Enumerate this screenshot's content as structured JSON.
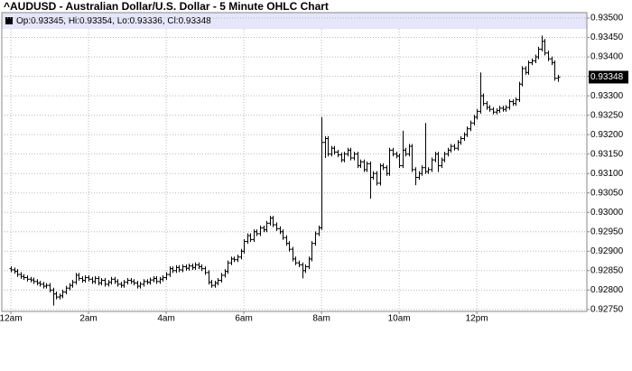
{
  "chart_data": {
    "type": "ohlc",
    "title": "^AUDUSD - Australian Dollar/U.S. Dollar - 5 Minute OHLC Chart",
    "legend_text": "Op:0.93345, Hi:0.93354, Lo:0.93336, Cl:0.93348",
    "last_price": 0.93348,
    "grid": true,
    "color": "#000000",
    "xlim": [
      -14,
      890
    ],
    "xticks": [
      {
        "value": 0,
        "label": "12am"
      },
      {
        "value": 120,
        "label": "2am"
      },
      {
        "value": 240,
        "label": "4am"
      },
      {
        "value": 360,
        "label": "6am"
      },
      {
        "value": 480,
        "label": "8am"
      },
      {
        "value": 600,
        "label": "10am"
      },
      {
        "value": 720,
        "label": "12pm"
      }
    ],
    "ylim": [
      0.92745,
      0.93514
    ],
    "yticks": [
      {
        "value": 0.9275,
        "label": "0.92750"
      },
      {
        "value": 0.928,
        "label": "0.92800"
      },
      {
        "value": 0.9285,
        "label": "0.92850"
      },
      {
        "value": 0.929,
        "label": "0.92900"
      },
      {
        "value": 0.9295,
        "label": "0.92950"
      },
      {
        "value": 0.93,
        "label": "0.93000"
      },
      {
        "value": 0.9305,
        "label": "0.93050"
      },
      {
        "value": 0.931,
        "label": "0.93100"
      },
      {
        "value": 0.9315,
        "label": "0.93150"
      },
      {
        "value": 0.932,
        "label": "0.93200"
      },
      {
        "value": 0.9325,
        "label": "0.93250"
      },
      {
        "value": 0.933,
        "label": "0.93300"
      },
      {
        "value": 0.9335,
        "label": "0.93350"
      },
      {
        "value": 0.934,
        "label": "0.93400"
      },
      {
        "value": 0.9345,
        "label": "0.93450"
      },
      {
        "value": 0.935,
        "label": "0.93500"
      }
    ],
    "x": [
      0,
      5,
      10,
      15,
      20,
      25,
      30,
      35,
      40,
      45,
      50,
      55,
      60,
      65,
      70,
      75,
      80,
      85,
      90,
      95,
      100,
      105,
      110,
      115,
      120,
      125,
      130,
      135,
      140,
      145,
      150,
      155,
      160,
      165,
      170,
      175,
      180,
      185,
      190,
      195,
      200,
      205,
      210,
      215,
      220,
      225,
      230,
      235,
      240,
      245,
      250,
      255,
      260,
      265,
      270,
      275,
      280,
      285,
      290,
      295,
      300,
      305,
      310,
      315,
      320,
      325,
      330,
      335,
      340,
      345,
      350,
      355,
      360,
      365,
      370,
      375,
      380,
      385,
      390,
      395,
      400,
      405,
      410,
      415,
      420,
      425,
      430,
      435,
      440,
      445,
      450,
      455,
      460,
      465,
      470,
      475,
      480,
      485,
      490,
      495,
      500,
      505,
      510,
      515,
      520,
      525,
      530,
      535,
      540,
      545,
      550,
      555,
      560,
      565,
      570,
      575,
      580,
      585,
      590,
      595,
      600,
      605,
      610,
      615,
      620,
      625,
      630,
      635,
      640,
      645,
      650,
      655,
      660,
      665,
      670,
      675,
      680,
      685,
      690,
      695,
      700,
      705,
      710,
      715,
      720,
      725,
      730,
      735,
      740,
      745,
      750,
      755,
      760,
      765,
      770,
      775,
      780,
      785,
      790,
      795,
      800,
      805,
      810,
      815,
      820,
      825,
      830,
      835,
      840,
      845
    ],
    "open": [
      0.92855,
      0.92852,
      0.92848,
      0.9284,
      0.92835,
      0.92832,
      0.92828,
      0.92826,
      0.92822,
      0.92818,
      0.92815,
      0.9281,
      0.92812,
      0.928,
      0.9279,
      0.92782,
      0.92785,
      0.92795,
      0.92805,
      0.92812,
      0.9282,
      0.92838,
      0.9283,
      0.92825,
      0.92832,
      0.92828,
      0.92822,
      0.9283,
      0.92818,
      0.92825,
      0.92815,
      0.9282,
      0.92828,
      0.92822,
      0.92815,
      0.92812,
      0.9282,
      0.92825,
      0.92822,
      0.92818,
      0.9281,
      0.92815,
      0.92822,
      0.9282,
      0.92826,
      0.9283,
      0.92822,
      0.92828,
      0.92832,
      0.9284,
      0.92855,
      0.9285,
      0.92858,
      0.92852,
      0.9286,
      0.92856,
      0.92862,
      0.92858,
      0.92865,
      0.9286,
      0.92855,
      0.92845,
      0.9282,
      0.92812,
      0.92818,
      0.92825,
      0.92838,
      0.92848,
      0.9287,
      0.9288,
      0.92878,
      0.92885,
      0.929,
      0.92925,
      0.9294,
      0.9293,
      0.9295,
      0.92945,
      0.9296,
      0.92955,
      0.92972,
      0.92985,
      0.92968,
      0.92958,
      0.9295,
      0.92935,
      0.9292,
      0.92905,
      0.9288,
      0.9287,
      0.92865,
      0.9285,
      0.9286,
      0.9288,
      0.9292,
      0.92945,
      0.9296,
      0.9318,
      0.9319,
      0.9315,
      0.93165,
      0.93155,
      0.93148,
      0.93135,
      0.9315,
      0.9316,
      0.9314,
      0.9315,
      0.9312,
      0.9313,
      0.9311,
      0.93125,
      0.9309,
      0.931,
      0.93075,
      0.9312,
      0.93115,
      0.931,
      0.9316,
      0.9315,
      0.93145,
      0.9312,
      0.9316,
      0.9315,
      0.9317,
      0.9311,
      0.9309,
      0.931,
      0.93115,
      0.93105,
      0.9311,
      0.93135,
      0.9315,
      0.9312,
      0.93135,
      0.9315,
      0.9316,
      0.9317,
      0.93165,
      0.9318,
      0.9319,
      0.932,
      0.93215,
      0.9323,
      0.93245,
      0.9326,
      0.933,
      0.9328,
      0.9327,
      0.93265,
      0.93258,
      0.93262,
      0.93268,
      0.93265,
      0.9327,
      0.93285,
      0.9328,
      0.9329,
      0.9333,
      0.9337,
      0.9336,
      0.93385,
      0.9339,
      0.934,
      0.9342,
      0.9344,
      0.9341,
      0.93395,
      0.93385,
      0.93345
    ],
    "high": [
      0.92861,
      0.92858,
      0.92854,
      0.92846,
      0.92841,
      0.92838,
      0.92834,
      0.92832,
      0.92828,
      0.92824,
      0.92821,
      0.92818,
      0.92818,
      0.92806,
      0.92796,
      0.92791,
      0.92801,
      0.92811,
      0.92818,
      0.92826,
      0.92844,
      0.92844,
      0.92836,
      0.92838,
      0.92838,
      0.92834,
      0.92836,
      0.92836,
      0.92831,
      0.92831,
      0.92826,
      0.92834,
      0.92834,
      0.92828,
      0.92821,
      0.92826,
      0.92831,
      0.92831,
      0.92828,
      0.92824,
      0.92821,
      0.92828,
      0.92828,
      0.92832,
      0.92836,
      0.92836,
      0.92834,
      0.92838,
      0.92846,
      0.92861,
      0.92861,
      0.92864,
      0.92864,
      0.92866,
      0.92866,
      0.92868,
      0.92868,
      0.92871,
      0.92871,
      0.92866,
      0.92861,
      0.92851,
      0.92826,
      0.92824,
      0.92831,
      0.92844,
      0.92854,
      0.92876,
      0.92886,
      0.92886,
      0.92891,
      0.92906,
      0.92931,
      0.92946,
      0.92946,
      0.92956,
      0.92956,
      0.92966,
      0.92966,
      0.92978,
      0.92991,
      0.92991,
      0.92974,
      0.92964,
      0.92956,
      0.92941,
      0.92926,
      0.92911,
      0.92886,
      0.92876,
      0.92871,
      0.92866,
      0.92886,
      0.92926,
      0.92951,
      0.92966,
      0.93245,
      0.93196,
      0.93196,
      0.93171,
      0.93171,
      0.93161,
      0.93154,
      0.93156,
      0.93166,
      0.93166,
      0.93156,
      0.93156,
      0.93136,
      0.93136,
      0.93131,
      0.93131,
      0.93106,
      0.93106,
      0.93126,
      0.93126,
      0.93121,
      0.93166,
      0.93166,
      0.93156,
      0.93151,
      0.9321,
      0.93166,
      0.93176,
      0.93176,
      0.93116,
      0.93106,
      0.93121,
      0.9323,
      0.93116,
      0.93141,
      0.93156,
      0.93156,
      0.93141,
      0.93156,
      0.93166,
      0.93176,
      0.93176,
      0.93186,
      0.93196,
      0.93206,
      0.93221,
      0.93236,
      0.93251,
      0.93266,
      0.9336,
      0.93306,
      0.93286,
      0.93276,
      0.93271,
      0.93268,
      0.93274,
      0.93274,
      0.93276,
      0.93291,
      0.93291,
      0.93296,
      0.93336,
      0.93376,
      0.93376,
      0.93391,
      0.93396,
      0.93406,
      0.93426,
      0.93455,
      0.93446,
      0.93416,
      0.93401,
      0.93391,
      0.93354
    ],
    "low": [
      0.92846,
      0.92842,
      0.92834,
      0.92829,
      0.92826,
      0.92822,
      0.9282,
      0.92816,
      0.92812,
      0.92809,
      0.92804,
      0.92804,
      0.92794,
      0.9276,
      0.92776,
      0.92776,
      0.92779,
      0.92789,
      0.92799,
      0.92806,
      0.92814,
      0.92824,
      0.92819,
      0.92819,
      0.92822,
      0.92816,
      0.92816,
      0.92812,
      0.92812,
      0.92809,
      0.92809,
      0.92814,
      0.92816,
      0.92809,
      0.92806,
      0.92806,
      0.92814,
      0.92816,
      0.92812,
      0.92804,
      0.92804,
      0.92809,
      0.92814,
      0.92814,
      0.9282,
      0.92816,
      0.92816,
      0.92822,
      0.92826,
      0.92834,
      0.92844,
      0.92844,
      0.92846,
      0.92846,
      0.9285,
      0.9285,
      0.92852,
      0.92852,
      0.92854,
      0.92849,
      0.92839,
      0.92814,
      0.92806,
      0.92806,
      0.92812,
      0.92819,
      0.92832,
      0.92842,
      0.92864,
      0.92872,
      0.92872,
      0.92879,
      0.92894,
      0.92919,
      0.92924,
      0.92924,
      0.92939,
      0.92939,
      0.92949,
      0.92949,
      0.92966,
      0.92962,
      0.92952,
      0.92944,
      0.92929,
      0.92914,
      0.92899,
      0.92874,
      0.92864,
      0.92859,
      0.9283,
      0.92844,
      0.92854,
      0.92874,
      0.92914,
      0.92939,
      0.92955,
      0.9314,
      0.93144,
      0.93144,
      0.93149,
      0.93142,
      0.93129,
      0.93129,
      0.93144,
      0.93134,
      0.93134,
      0.93114,
      0.93114,
      0.93104,
      0.93104,
      0.93035,
      0.93084,
      0.93069,
      0.93069,
      0.93109,
      0.93094,
      0.93094,
      0.93144,
      0.93139,
      0.93114,
      0.93114,
      0.93144,
      0.93144,
      0.93104,
      0.9307,
      0.93084,
      0.93094,
      0.93099,
      0.93099,
      0.93104,
      0.93129,
      0.93104,
      0.93114,
      0.93129,
      0.93144,
      0.93154,
      0.93159,
      0.93159,
      0.93174,
      0.93184,
      0.93194,
      0.93209,
      0.93224,
      0.93239,
      0.93254,
      0.93274,
      0.93264,
      0.93259,
      0.93252,
      0.93252,
      0.93256,
      0.93259,
      0.93259,
      0.93264,
      0.93274,
      0.93274,
      0.93284,
      0.93324,
      0.93354,
      0.93354,
      0.93379,
      0.93384,
      0.93394,
      0.93414,
      0.93404,
      0.93389,
      0.93379,
      0.93339,
      0.93336
    ],
    "close": [
      0.92852,
      0.92848,
      0.9284,
      0.92835,
      0.92832,
      0.92828,
      0.92826,
      0.92822,
      0.92818,
      0.92815,
      0.9281,
      0.92812,
      0.928,
      0.9279,
      0.92782,
      0.92785,
      0.92795,
      0.92805,
      0.92812,
      0.9282,
      0.92838,
      0.9283,
      0.92825,
      0.92832,
      0.92828,
      0.92822,
      0.9283,
      0.92818,
      0.92825,
      0.92815,
      0.9282,
      0.92828,
      0.92822,
      0.92815,
      0.92812,
      0.9282,
      0.92825,
      0.92822,
      0.92818,
      0.9281,
      0.92815,
      0.92822,
      0.9282,
      0.92826,
      0.9283,
      0.92822,
      0.92828,
      0.92832,
      0.9284,
      0.92855,
      0.9285,
      0.92858,
      0.92852,
      0.9286,
      0.92856,
      0.92862,
      0.92858,
      0.92865,
      0.9286,
      0.92855,
      0.92845,
      0.9282,
      0.92812,
      0.92818,
      0.92825,
      0.92838,
      0.92848,
      0.9287,
      0.9288,
      0.92878,
      0.92885,
      0.929,
      0.92925,
      0.9294,
      0.9293,
      0.9295,
      0.92945,
      0.9296,
      0.92955,
      0.92972,
      0.92985,
      0.92968,
      0.92958,
      0.9295,
      0.92935,
      0.9292,
      0.92905,
      0.9288,
      0.9287,
      0.92865,
      0.9285,
      0.9286,
      0.9288,
      0.9292,
      0.92945,
      0.9296,
      0.9318,
      0.9319,
      0.9315,
      0.93165,
      0.93155,
      0.93148,
      0.93135,
      0.9315,
      0.9316,
      0.9314,
      0.9315,
      0.9312,
      0.9313,
      0.9311,
      0.93125,
      0.9309,
      0.931,
      0.93075,
      0.9312,
      0.93115,
      0.931,
      0.9316,
      0.9315,
      0.93145,
      0.9312,
      0.9316,
      0.9315,
      0.9317,
      0.9311,
      0.9309,
      0.931,
      0.93115,
      0.93105,
      0.9311,
      0.93135,
      0.9315,
      0.9312,
      0.93135,
      0.9315,
      0.9316,
      0.9317,
      0.93165,
      0.9318,
      0.9319,
      0.932,
      0.93215,
      0.9323,
      0.93245,
      0.9326,
      0.933,
      0.9328,
      0.9327,
      0.93265,
      0.93258,
      0.93262,
      0.93268,
      0.93265,
      0.9327,
      0.93285,
      0.9328,
      0.9329,
      0.9333,
      0.9337,
      0.9336,
      0.93385,
      0.9339,
      0.934,
      0.9342,
      0.9344,
      0.9341,
      0.93395,
      0.93385,
      0.93345,
      0.93348
    ]
  }
}
